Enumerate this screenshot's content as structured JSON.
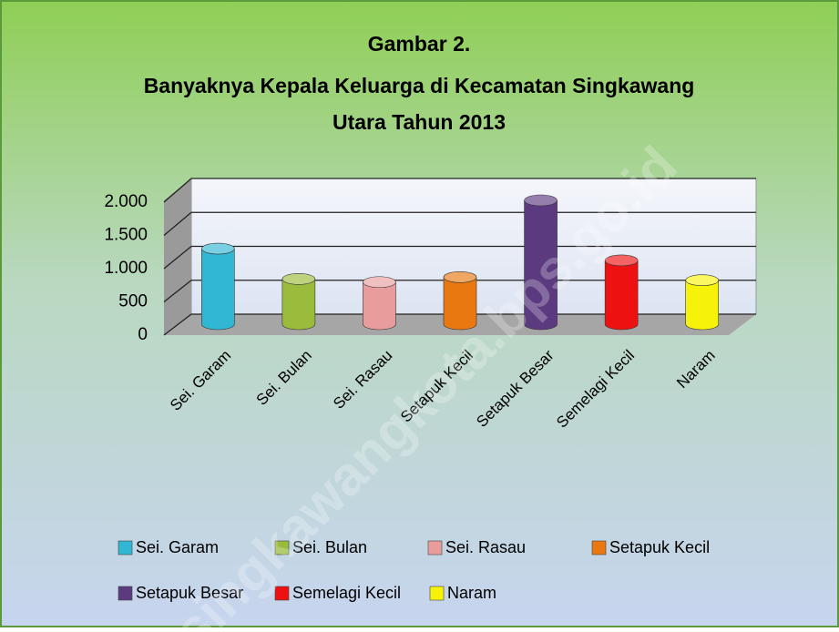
{
  "chart_data": {
    "type": "bar3d",
    "title": [
      "Gambar 2.",
      "Banyaknya Kepala Keluarga di Kecamatan Singkawang",
      "Utara Tahun 2013"
    ],
    "categories": [
      "Sei. Garam",
      "Sei. Bulan",
      "Sei. Rasau",
      "Setapuk Kecil",
      "Setapuk Besar",
      "Semelagi Kecil",
      "Naram"
    ],
    "values": [
      1220,
      730,
      680,
      760,
      2000,
      1030,
      710
    ],
    "colors": [
      "#31b6d3",
      "#9bbb3c",
      "#e89c9c",
      "#e8780f",
      "#5c3a80",
      "#ee1111",
      "#f7f20a"
    ],
    "ylim": [
      0,
      2000
    ],
    "yticks": [
      0,
      500,
      {
        "value": 1000,
        "label": "1.000"
      },
      {
        "value": 1500,
        "label": "1.500"
      },
      {
        "value": 2000,
        "label": "2.000"
      }
    ],
    "grid": true,
    "watermark": "singkawangkota.bps.go.id"
  }
}
